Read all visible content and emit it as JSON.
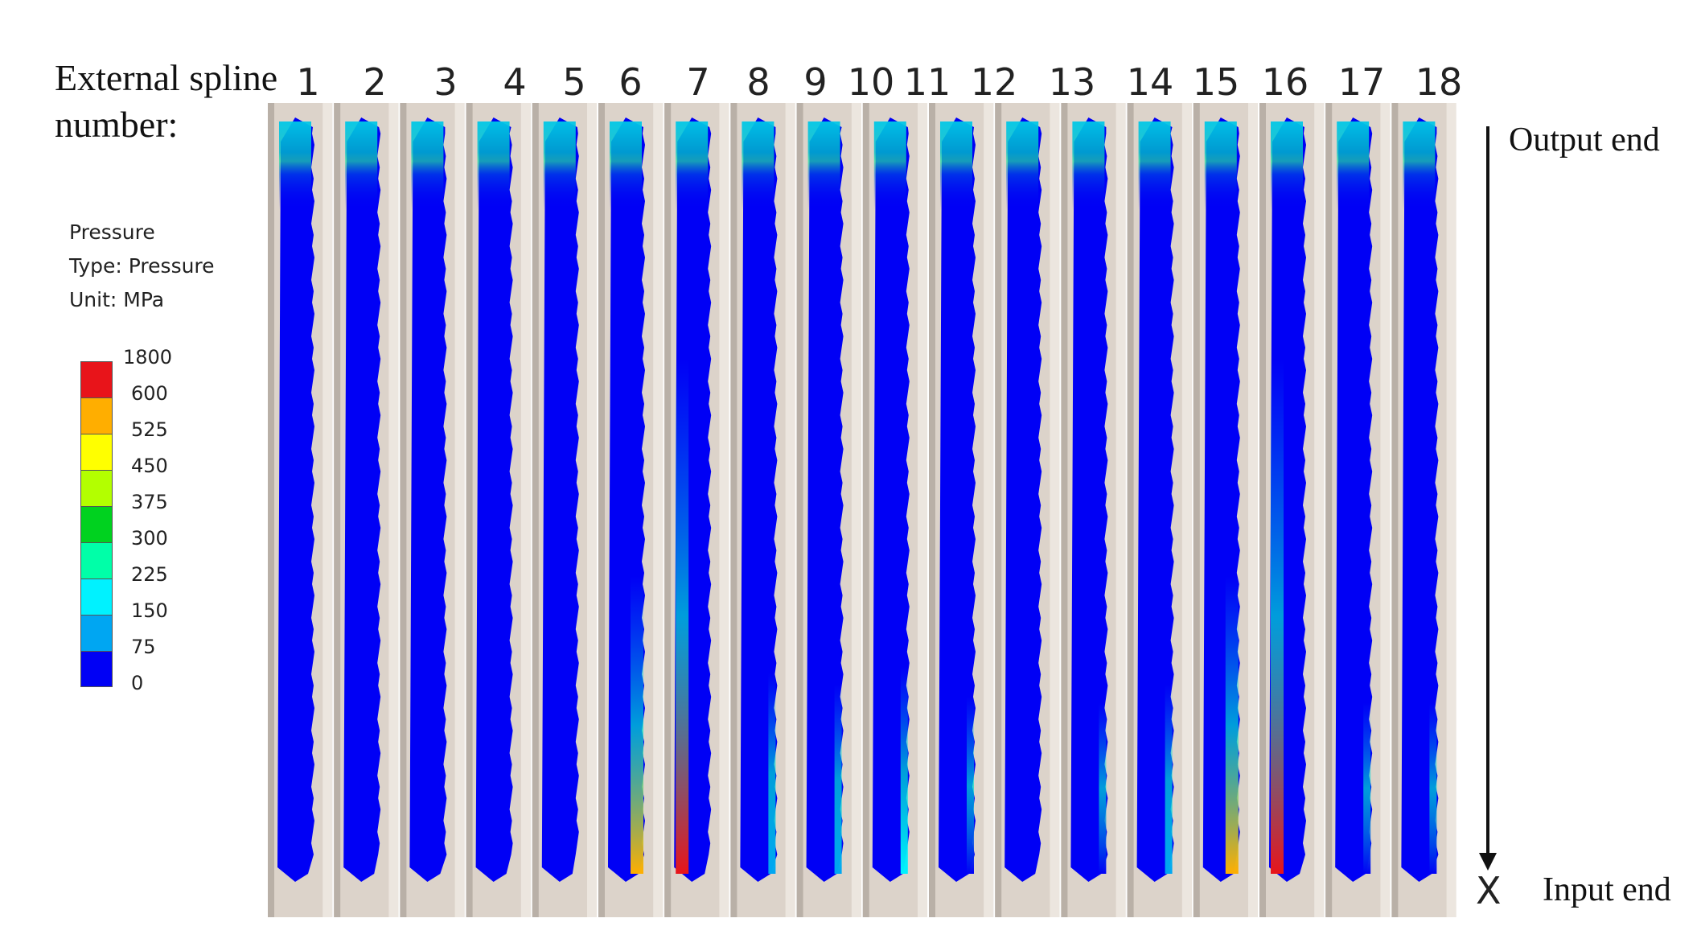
{
  "title": {
    "line1": "External spline",
    "line2": "number:"
  },
  "legend": {
    "name": "Pressure",
    "type": "Type: Pressure",
    "unit": "Unit: MPa",
    "values": [
      "1800",
      "600",
      "525",
      "450",
      "375",
      "300",
      "225",
      "150",
      "75",
      "0"
    ],
    "colors": [
      "#e8141a",
      "#ffae00",
      "#ffff00",
      "#b3ff00",
      "#00d21f",
      "#00ffa8",
      "#00f2ff",
      "#00a6f2",
      "#0000f5"
    ]
  },
  "splines": [
    {
      "number": "1",
      "edge_pressure": 0
    },
    {
      "number": "2",
      "edge_pressure": 0
    },
    {
      "number": "3",
      "edge_pressure": 0
    },
    {
      "number": "4",
      "edge_pressure": 0
    },
    {
      "number": "5",
      "edge_pressure": 0
    },
    {
      "number": "6",
      "edge_pressure": 600
    },
    {
      "number": "7",
      "edge_pressure": 1800
    },
    {
      "number": "8",
      "edge_pressure": 200
    },
    {
      "number": "9",
      "edge_pressure": 150
    },
    {
      "number": "10",
      "edge_pressure": 225
    },
    {
      "number": "11",
      "edge_pressure": 100
    },
    {
      "number": "12",
      "edge_pressure": 0
    },
    {
      "number": "13",
      "edge_pressure": 75
    },
    {
      "number": "14",
      "edge_pressure": 150
    },
    {
      "number": "15",
      "edge_pressure": 600
    },
    {
      "number": "16",
      "edge_pressure": 1800
    },
    {
      "number": "17",
      "edge_pressure": 75
    },
    {
      "number": "18",
      "edge_pressure": 75
    }
  ],
  "ends": {
    "output": "Output end",
    "input": "Input end",
    "marker": "X"
  }
}
